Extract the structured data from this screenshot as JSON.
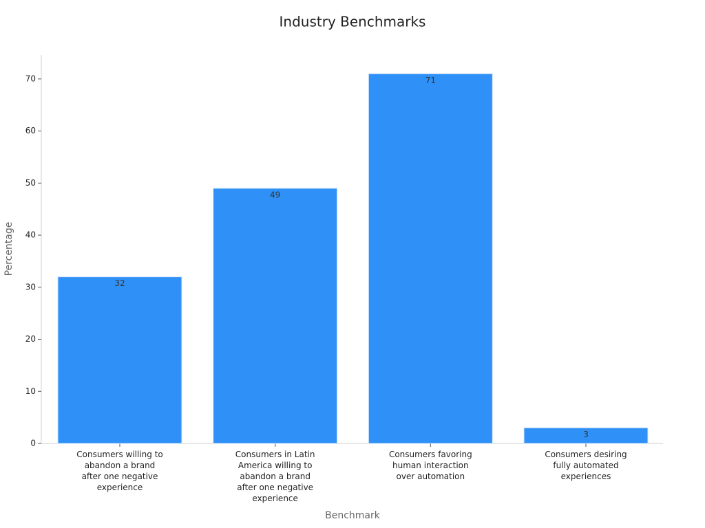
{
  "chart_data": {
    "type": "bar",
    "title": "Industry Benchmarks",
    "x_label": "Benchmark",
    "y_label": "Percentage",
    "categories": [
      "Consumers willing to\nabandon a brand\nafter one negative\nexperience",
      "Consumers in Latin\nAmerica willing to\nabandon a brand\nafter one negative\nexperience",
      "Consumers favoring\nhuman interaction\nover automation",
      "Consumers desiring\nfully automated\nexperiences"
    ],
    "values": [
      32,
      49,
      71,
      3
    ],
    "color": "#2f91f7",
    "ylim": [
      0,
      74.6
    ],
    "yticks": [
      0,
      10,
      20,
      30,
      40,
      50,
      60,
      70
    ],
    "grid": false
  }
}
